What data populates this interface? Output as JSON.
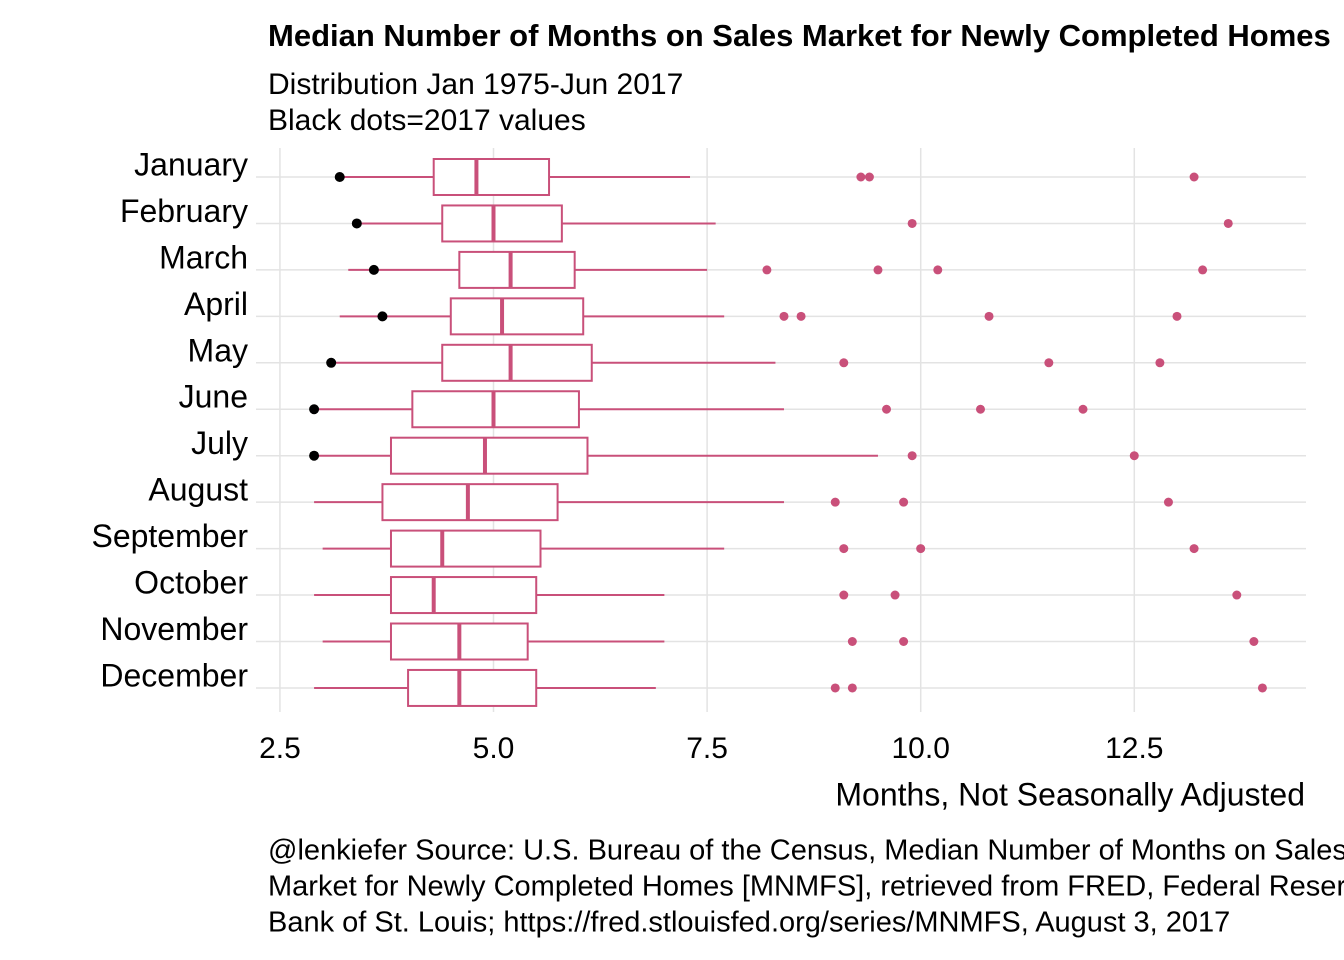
{
  "chart_data": {
    "type": "box",
    "title": "Median Number of Months on Sales Market for Newly Completed Homes",
    "subtitle": [
      "Distribution Jan 1975-Jun 2017",
      "Black dots=2017 values"
    ],
    "xlabel": "Months, Not Seasonally Adjusted",
    "caption": [
      "@lenkiefer Source: U.S. Bureau of the Census, Median Number of Months on Sales",
      "Market for Newly Completed Homes [MNMFS], retrieved from FRED, Federal Reserve",
      "Bank of St. Louis; https://fred.stlouisfed.org/series/MNMFS, August 3, 2017"
    ],
    "categories": [
      "January",
      "February",
      "March",
      "April",
      "May",
      "June",
      "July",
      "August",
      "September",
      "October",
      "November",
      "December"
    ],
    "color": "#c9507a",
    "point_color": "#000000",
    "grid": true,
    "xlim": [
      2.22,
      14.51
    ],
    "xticks": [
      2.5,
      {
        "value": 5,
        "label": "5.0"
      },
      7.5,
      {
        "value": 10,
        "label": "10.0"
      },
      12.5
    ],
    "boxes": [
      {
        "whislo": 3.2,
        "q1": 4.3,
        "med": 4.8,
        "q3": 5.65,
        "whishi": 7.3,
        "fliers": [
          9.3,
          9.4,
          13.2
        ]
      },
      {
        "whislo": 3.4,
        "q1": 4.4,
        "med": 5.0,
        "q3": 5.8,
        "whishi": 7.6,
        "fliers": [
          9.9,
          13.6
        ]
      },
      {
        "whislo": 3.3,
        "q1": 4.6,
        "med": 5.2,
        "q3": 5.95,
        "whishi": 7.5,
        "fliers": [
          8.2,
          9.5,
          10.2,
          13.3
        ]
      },
      {
        "whislo": 3.2,
        "q1": 4.5,
        "med": 5.1,
        "q3": 6.05,
        "whishi": 7.7,
        "fliers": [
          8.4,
          8.6,
          10.8,
          13.0
        ]
      },
      {
        "whislo": 3.1,
        "q1": 4.4,
        "med": 5.2,
        "q3": 6.15,
        "whishi": 8.3,
        "fliers": [
          9.1,
          11.5,
          12.8
        ]
      },
      {
        "whislo": 2.9,
        "q1": 4.05,
        "med": 5.0,
        "q3": 6.0,
        "whishi": 8.4,
        "fliers": [
          9.6,
          10.7,
          11.9
        ]
      },
      {
        "whislo": 2.9,
        "q1": 3.8,
        "med": 4.9,
        "q3": 6.1,
        "whishi": 9.5,
        "fliers": [
          9.9,
          12.5
        ]
      },
      {
        "whislo": 2.9,
        "q1": 3.7,
        "med": 4.7,
        "q3": 5.75,
        "whishi": 8.4,
        "fliers": [
          9.0,
          9.8,
          12.9
        ]
      },
      {
        "whislo": 3.0,
        "q1": 3.8,
        "med": 4.4,
        "q3": 5.55,
        "whishi": 7.7,
        "fliers": [
          9.1,
          10.0,
          13.2
        ]
      },
      {
        "whislo": 2.9,
        "q1": 3.8,
        "med": 4.3,
        "q3": 5.5,
        "whishi": 7.0,
        "fliers": [
          9.1,
          9.7,
          13.7
        ]
      },
      {
        "whislo": 3.0,
        "q1": 3.8,
        "med": 4.6,
        "q3": 5.4,
        "whishi": 7.0,
        "fliers": [
          9.2,
          9.8,
          13.9
        ]
      },
      {
        "whislo": 2.9,
        "q1": 4.0,
        "med": 4.6,
        "q3": 5.5,
        "whishi": 6.9,
        "fliers": [
          9.0,
          9.2,
          14.0
        ]
      }
    ],
    "values_2017": [
      3.2,
      3.4,
      3.6,
      3.7,
      3.1,
      2.9,
      2.9,
      null,
      null,
      null,
      null,
      null
    ]
  }
}
